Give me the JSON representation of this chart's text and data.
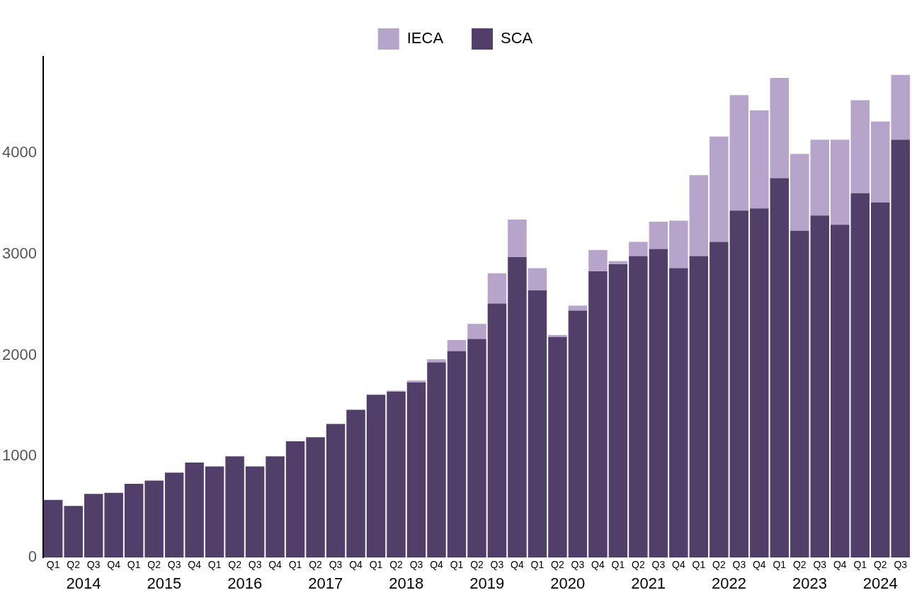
{
  "chart_data": {
    "type": "bar",
    "stacked": true,
    "legend": "top",
    "categories": [
      "Q1",
      "Q2",
      "Q3",
      "Q4",
      "Q1",
      "Q2",
      "Q3",
      "Q4",
      "Q1",
      "Q2",
      "Q3",
      "Q4",
      "Q1",
      "Q2",
      "Q3",
      "Q4",
      "Q1",
      "Q2",
      "Q3",
      "Q4",
      "Q1",
      "Q2",
      "Q3",
      "Q4",
      "Q1",
      "Q2",
      "Q3",
      "Q4",
      "Q1",
      "Q2",
      "Q3",
      "Q4",
      "Q1",
      "Q2",
      "Q3",
      "Q4",
      "Q1",
      "Q2",
      "Q3",
      "Q4",
      "Q1",
      "Q2",
      "Q3"
    ],
    "series": [
      {
        "name": "SCA",
        "color": "#523f69",
        "values": [
          570,
          510,
          630,
          640,
          730,
          760,
          840,
          940,
          900,
          1000,
          900,
          1000,
          1150,
          1190,
          1320,
          1460,
          1610,
          1640,
          1730,
          1930,
          2040,
          2160,
          2510,
          2970,
          2640,
          2180,
          2440,
          2830,
          2900,
          2980,
          3050,
          2860,
          2980,
          3120,
          3430,
          3450,
          3750,
          3230,
          3380,
          3290,
          3600,
          3510,
          4130
        ]
      },
      {
        "name": "IECA",
        "color": "#b6a4cb",
        "values": [
          0,
          0,
          0,
          0,
          0,
          0,
          0,
          0,
          0,
          0,
          0,
          0,
          0,
          0,
          0,
          0,
          0,
          10,
          20,
          30,
          110,
          150,
          300,
          370,
          220,
          20,
          50,
          210,
          30,
          140,
          270,
          470,
          800,
          1040,
          1140,
          970,
          990,
          760,
          750,
          840,
          920,
          800,
          640
        ]
      }
    ],
    "ylim": [
      0,
      4950
    ],
    "yticks": [
      0,
      1000,
      2000,
      3000,
      4000
    ],
    "grid": false,
    "annotations": [
      "2014",
      "2015",
      "2016",
      "2017",
      "2018",
      "2019",
      "2020",
      "2021",
      "2022",
      "2023",
      "2024"
    ]
  }
}
